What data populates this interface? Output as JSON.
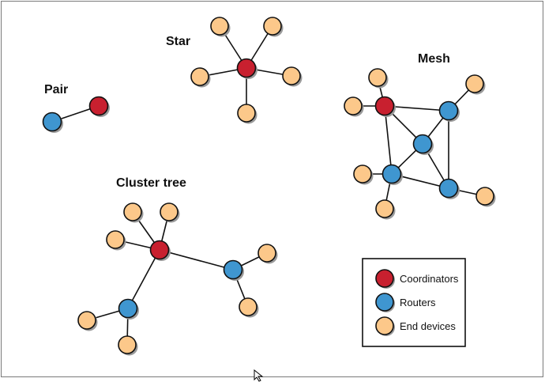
{
  "colors": {
    "coordinator": "#c8202f",
    "router": "#3f96d0",
    "end_device": "#fcc88a",
    "shadow": "#9a9a9a"
  },
  "topologies": {
    "pair": {
      "label": "Pair"
    },
    "star": {
      "label": "Star"
    },
    "mesh": {
      "label": "Mesh"
    },
    "cluster_tree": {
      "label": "Cluster tree"
    }
  },
  "legend": {
    "items": [
      {
        "key": "coordinator",
        "label": "Coordinators"
      },
      {
        "key": "router",
        "label": "Routers"
      },
      {
        "key": "end_device",
        "label": "End devices"
      }
    ]
  }
}
